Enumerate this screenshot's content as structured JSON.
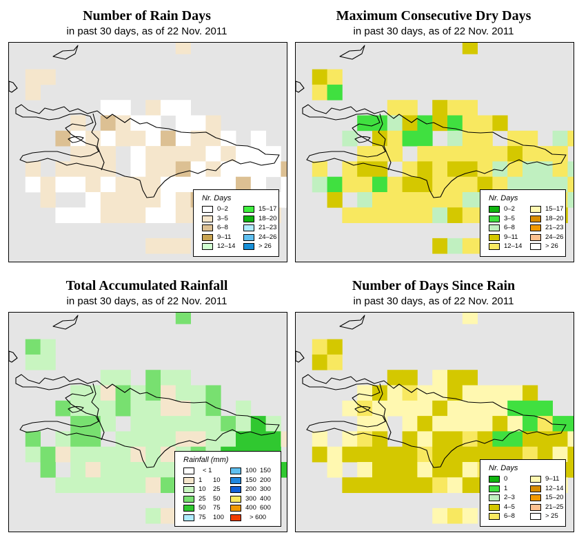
{
  "panels": [
    {
      "id": "rain-days",
      "title": "Number of Rain Days",
      "subtitle": "in past 30 days, as of  22 Nov. 2011",
      "legend": {
        "title": "Nr. Days",
        "type": "twocol",
        "items": [
          {
            "label": "0–2",
            "color": "#ffffff"
          },
          {
            "label": "3–5",
            "color": "#f5e6cc"
          },
          {
            "label": "6–8",
            "color": "#dcc093"
          },
          {
            "label": "9–11",
            "color": "#c8a452"
          },
          {
            "label": "12–14",
            "color": "#d0ffd0"
          },
          {
            "label": "15–17",
            "color": "#40f040"
          },
          {
            "label": "18–20",
            "color": "#10b410"
          },
          {
            "label": "21–23",
            "color": "#b0ecff"
          },
          {
            "label": "24–26",
            "color": "#60c0f0"
          },
          {
            "label": "> 26",
            "color": "#1890d8"
          }
        ]
      },
      "palette": [
        "#f5e6cc",
        "#ffffff",
        "#dcc093",
        "#c8a452",
        "#d0ffd0",
        "#40f040"
      ],
      "grid_rows": [
        "...........-........",
        "...................",
        ".--................",
        ".-.................",
        "......-+.-++.......",
        "....-.+-++.++-.....",
        "...+--+---++---.+..",
        "....---.-----+-+++.",
        ".-.----.+--++-+++++",
        ".--++-----+-+++++.++",
        "..-..-----+-++.+-++",
        "...+++----+---.+.-",
        ".............+.....",
        ".........---......."
      ]
    },
    {
      "id": "max-dry-days",
      "title": "Maximum Consecutive Dry Days",
      "subtitle": "in past 30 days, as of  22 Nov. 2011",
      "legend": {
        "title": "Nr. Days",
        "type": "twocol",
        "items": [
          {
            "label": "0–2",
            "color": "#10b410"
          },
          {
            "label": "3–5",
            "color": "#40e040"
          },
          {
            "label": "6–8",
            "color": "#c0f0c0"
          },
          {
            "label": "9–11",
            "color": "#d4c800"
          },
          {
            "label": "12–14",
            "color": "#f8e860"
          },
          {
            "label": "15–17",
            "color": "#fff8b0"
          },
          {
            "label": "18–20",
            "color": "#d88c00"
          },
          {
            "label": "21–23",
            "color": "#f09800"
          },
          {
            "label": "24–26",
            "color": "#fcc090"
          },
          {
            "label": "> 26",
            "color": "#ffffff"
          }
        ]
      },
      "palette": [
        "#d4c800",
        "#f8e860",
        "#c0f0c0",
        "#40e040",
        "#d88c00",
        "#f09800"
      ],
      "grid_rows": [
        "...........-........",
        "...................",
        ".-+................",
        ".+#................",
        "......++.-+-.......",
        "....##+-#-#++-.....",
        "...+.-+##.+++.++.++",
        "....+++.++++++-+++.",
        ".+.+--.+-+--+=+==+=",
        ".+#++#+--+++-+====+",
        "..-.=-++++-==+.+-+=",
        "...+-+++++-+++.+.-",
        ".............+.....",
        ".........-++-......"
      ]
    },
    {
      "id": "total-rainfall",
      "title": "Total Accumulated Rainfall",
      "subtitle": "in past 30 days, as of  22 Nov. 2011",
      "legend": {
        "title": "Rainfall (mm)",
        "type": "ranges",
        "items": [
          {
            "lo": "",
            "hi": "< 1",
            "color": "#ffffff"
          },
          {
            "lo": "1",
            "hi": "10",
            "color": "#f5e6cc"
          },
          {
            "lo": "10",
            "hi": "25",
            "color": "#c8f5c0"
          },
          {
            "lo": "25",
            "hi": "50",
            "color": "#78e070"
          },
          {
            "lo": "50",
            "hi": "75",
            "color": "#30c830"
          },
          {
            "lo": "75",
            "hi": "100",
            "color": "#b0ecff"
          },
          {
            "lo": "100",
            "hi": "150",
            "color": "#60c0f0"
          },
          {
            "lo": "150",
            "hi": "200",
            "color": "#2088e0"
          },
          {
            "lo": "200",
            "hi": "300",
            "color": "#1060d8"
          },
          {
            "lo": "300",
            "hi": "400",
            "color": "#f8e860"
          },
          {
            "lo": "400",
            "hi": "600",
            "color": "#f09800"
          },
          {
            "lo": "",
            "hi": "> 600",
            "color": "#f03c00"
          }
        ]
      },
      "palette": [
        "#78e070",
        "#c8f5c0",
        "#f5e6cc",
        "#30c830",
        "#60c0f0",
        "#1060d8"
      ],
      "grid_rows": [
        "...........-........",
        "...................",
        ".-+................",
        ".+-................",
        "......-+.-+-.......",
        "....+-=-+-=++-.....",
        "...-+++-+++=+-.+..",
        "....--+.-+++++-+#+.",
        ".-.+--.+++++=++###=",
        ".--=++++++=+-+####",
        "..-.++++++-++=.+=##",
        "...+++++++-+++.+.#",
        ".............+.....",
        ".........+++......."
      ]
    },
    {
      "id": "days-since-rain",
      "title": "Number of Days Since Rain",
      "subtitle": "in past 30 days, as of  22 Nov. 2011",
      "legend": {
        "title": "Nr. Days",
        "type": "twocol",
        "items": [
          {
            "label": "0",
            "color": "#10b410"
          },
          {
            "label": "1",
            "color": "#40e040"
          },
          {
            "label": "2–3",
            "color": "#c0f0c0"
          },
          {
            "label": "4–5",
            "color": "#d4c800"
          },
          {
            "label": "6–8",
            "color": "#f8e860"
          },
          {
            "label": "9–11",
            "color": "#fff8b0"
          },
          {
            "label": "12–14",
            "color": "#d88c00"
          },
          {
            "label": "15–20",
            "color": "#f09800"
          },
          {
            "label": "21–25",
            "color": "#fcc090"
          },
          {
            "label": "> 25",
            "color": "#ffffff"
          }
        ]
      },
      "palette": [
        "#fff8b0",
        "#d4c800",
        "#f8e860",
        "#40e040",
        "#10b410",
        "#f09800"
      ],
      "grid_rows": [
        "...........-........",
        "...................",
        ".=+................",
        ".+=................",
        "......-+.-+-.......",
        "....---=--------.....",
        "...-=---------###..",
        "....--.--------#=##.",
        ".-.-++.+-++++##+++-",
        ".--++++++++++++++-+",
        "..-.--++-++-++.+-++",
        "...+++++++-+++.+.-",
        ".............+.....",
        ".........-+-......."
      ]
    }
  ]
}
